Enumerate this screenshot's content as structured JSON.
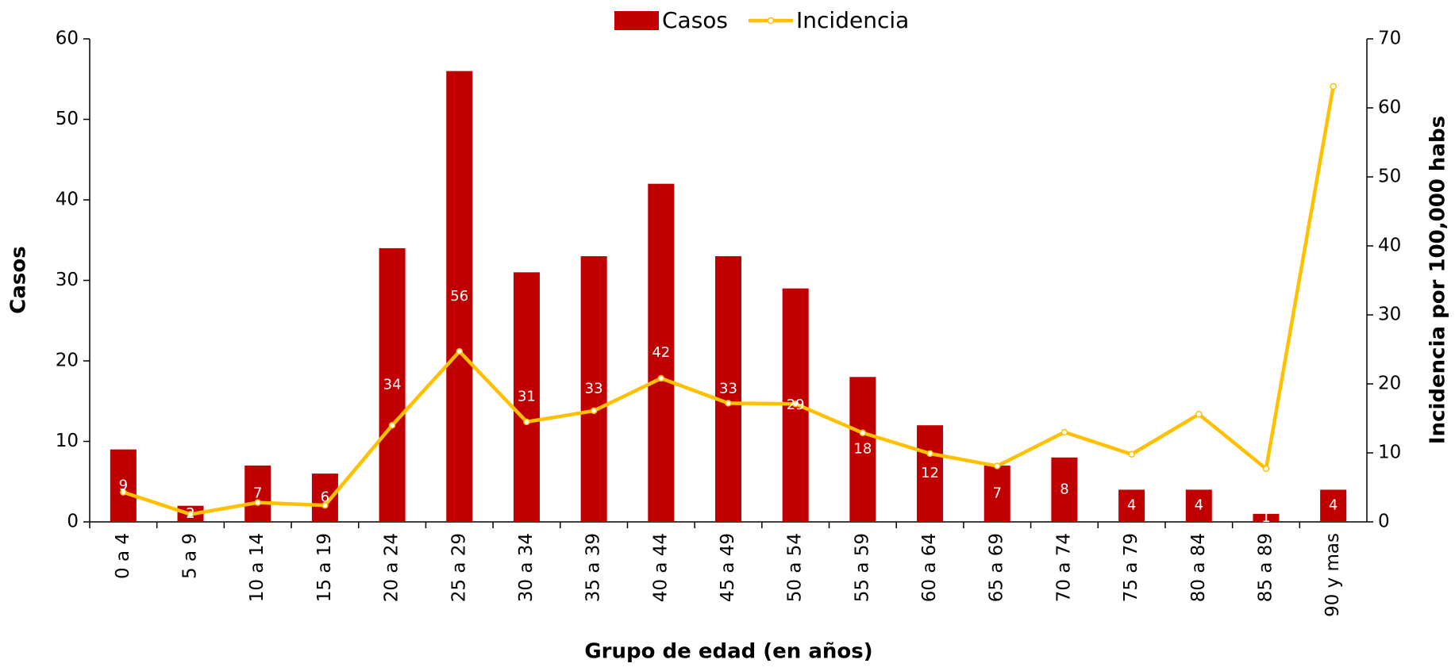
{
  "chart_data": {
    "type": "bar-line",
    "x_label": "Grupo de edad (en años)",
    "y_label": "Casos",
    "y2_label": "Incidencia por 100,000 habs",
    "categories": [
      "0 a 4",
      "5 a 9",
      "10 a 14",
      "15 a 19",
      "20 a 24",
      "25 a 29",
      "30 a 34",
      "35 a 39",
      "40 a 44",
      "45 a 49",
      "50 a 54",
      "55 a 59",
      "60 a 64",
      "65 a 69",
      "70 a 74",
      "75 a 79",
      "80 a 84",
      "85 a 89",
      "90 y mas"
    ],
    "series": [
      {
        "name": "Casos",
        "type": "bar",
        "color": "#C00000",
        "values": [
          9,
          2,
          7,
          6,
          34,
          56,
          31,
          33,
          42,
          33,
          29,
          18,
          12,
          7,
          8,
          4,
          4,
          1,
          4
        ]
      },
      {
        "name": "Incidencia",
        "type": "line",
        "axis": "y2",
        "color": "#FFC000",
        "values": [
          4.3,
          1.1,
          2.8,
          2.4,
          14.0,
          24.7,
          14.5,
          16.1,
          20.8,
          17.2,
          17.1,
          12.9,
          9.9,
          8.1,
          13.0,
          9.8,
          15.6,
          7.7,
          63.1
        ]
      }
    ],
    "ylim": [
      0,
      60
    ],
    "yticks": [
      0,
      10,
      20,
      30,
      40,
      50,
      60
    ],
    "y2lim": [
      0,
      70
    ],
    "y2ticks": [
      0,
      10,
      20,
      30,
      40,
      50,
      60,
      70
    ],
    "legend": "top"
  }
}
